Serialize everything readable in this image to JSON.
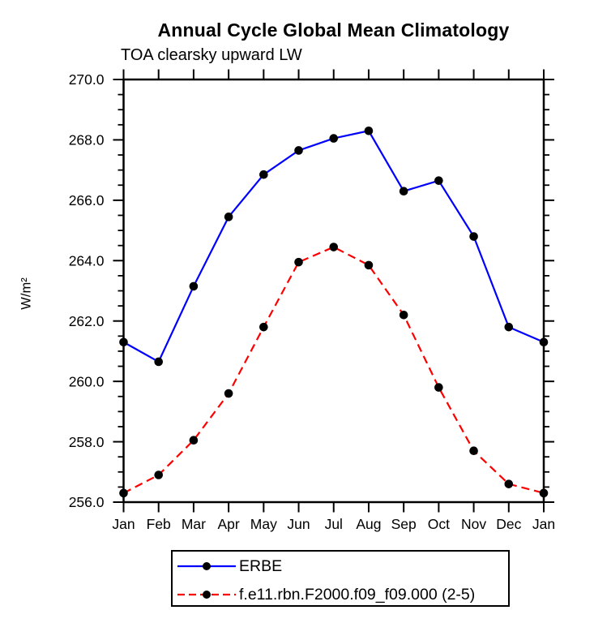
{
  "chart_data": {
    "type": "line",
    "title": "Annual Cycle Global Mean Climatology",
    "subtitle": "TOA clearsky upward LW",
    "xlabel": "",
    "ylabel": "W/m²",
    "categories": [
      "Jan",
      "Feb",
      "Mar",
      "Apr",
      "May",
      "Jun",
      "Jul",
      "Aug",
      "Sep",
      "Oct",
      "Nov",
      "Dec",
      "Jan"
    ],
    "ylim": [
      256.0,
      270.0
    ],
    "ytick_step": 2.0,
    "ytick_labels": [
      "256.0",
      "258.0",
      "260.0",
      "262.0",
      "264.0",
      "266.0",
      "268.0",
      "270.0"
    ],
    "minor_tick_step": 0.5,
    "grid": false,
    "legend_position": "bottom",
    "axis_color": "#000000",
    "series": [
      {
        "name": "ERBE",
        "color": "#0000ff",
        "style": "solid",
        "marker": "circle",
        "marker_color": "#000000",
        "values": [
          261.3,
          260.65,
          263.15,
          265.45,
          266.85,
          267.65,
          268.05,
          268.3,
          266.3,
          266.65,
          264.8,
          261.8,
          261.3
        ]
      },
      {
        "name": "f.e11.rbn.F2000.f09_f09.000 (2-5)",
        "color": "#ff0000",
        "style": "dashed",
        "marker": "circle",
        "marker_color": "#000000",
        "values": [
          256.3,
          256.9,
          258.05,
          259.6,
          261.8,
          263.95,
          264.45,
          263.85,
          262.2,
          259.8,
          257.7,
          256.6,
          256.3
        ]
      }
    ]
  }
}
